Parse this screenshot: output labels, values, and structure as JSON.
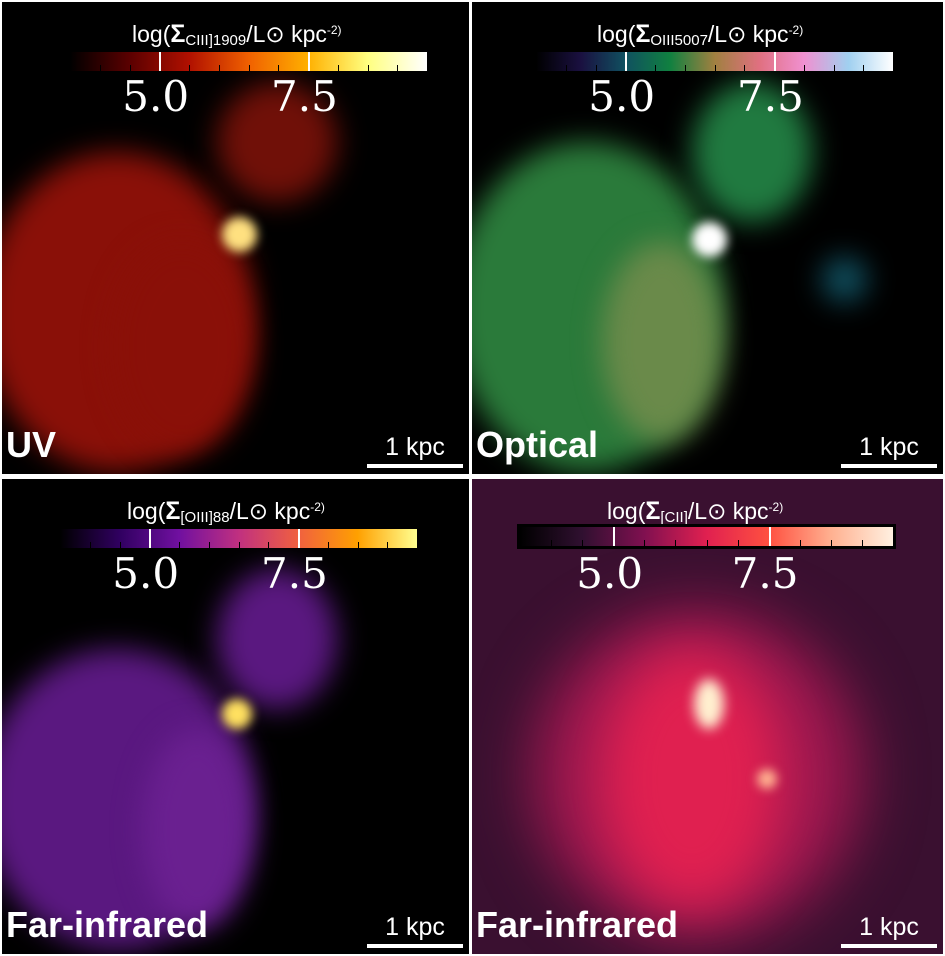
{
  "panels": [
    {
      "band": "UV",
      "cb_prefix": "log(",
      "cb_sigma": "Σ",
      "cb_sub": "CIII]1909",
      "cb_suffix": "/L⊙ kpc",
      "cb_sup": "-2)",
      "tick_labels": [
        "5.0",
        "7.5"
      ],
      "scale": "1 kpc",
      "colormap": [
        "#000000",
        "#5a0000",
        "#b01000",
        "#f06000",
        "#ffb000",
        "#ffff80",
        "#ffffff"
      ]
    },
    {
      "band": "Optical",
      "cb_prefix": "log(",
      "cb_sigma": "Σ",
      "cb_sub": "OIII5007",
      "cb_suffix": "/L⊙ kpc",
      "cb_sup": "-2)",
      "tick_labels": [
        "5.0",
        "7.5"
      ],
      "scale": "1 kpc",
      "colormap": [
        "#000000",
        "#1a1040",
        "#105060",
        "#108040",
        "#a08040",
        "#e07080",
        "#f090d0",
        "#a0d0f0",
        "#ffffff"
      ]
    },
    {
      "band": "Far-infrared",
      "cb_prefix": "log(",
      "cb_sigma": "Σ",
      "cb_sub": "[OIII]88",
      "cb_suffix": "/L⊙ kpc",
      "cb_sup": "-2)",
      "tick_labels": [
        "5.0",
        "7.5"
      ],
      "scale": "1 kpc",
      "colormap": [
        "#000000",
        "#300060",
        "#7010a0",
        "#c03080",
        "#f06040",
        "#ffa000",
        "#ffff90"
      ]
    },
    {
      "band": "Far-infrared",
      "cb_prefix": "log(",
      "cb_sigma": "Σ",
      "cb_sub": "[CII]",
      "cb_suffix": "/L⊙ kpc",
      "cb_sup": "-2)",
      "tick_labels": [
        "5.0",
        "7.5"
      ],
      "scale": "1 kpc",
      "colormap": [
        "#000000",
        "#301030",
        "#801050",
        "#e02050",
        "#ff5040",
        "#ffb090",
        "#fff0e0"
      ]
    }
  ]
}
